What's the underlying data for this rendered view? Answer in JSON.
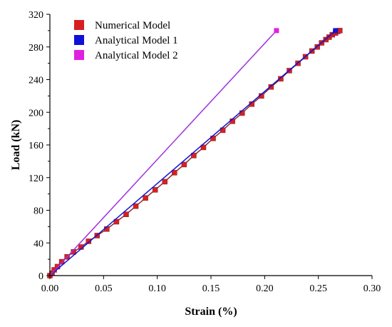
{
  "chart_data": {
    "type": "line",
    "xlabel": "Strain (%)",
    "ylabel": "Load (kN)",
    "xlim": [
      0,
      0.3
    ],
    "ylim": [
      0,
      320
    ],
    "xticks": [
      "0.00",
      "0.05",
      "0.10",
      "0.15",
      "0.20",
      "0.25",
      "0.30"
    ],
    "yticks": [
      "0",
      "40",
      "80",
      "120",
      "160",
      "200",
      "240",
      "280",
      "320"
    ],
    "grid": false,
    "legend_position": "top-left",
    "series": [
      {
        "name": "Numerical Model",
        "color": "#d62020",
        "line_color": "#8b2a2a",
        "marker": "square",
        "x": [
          0.0,
          0.002,
          0.004,
          0.007,
          0.011,
          0.016,
          0.022,
          0.029,
          0.036,
          0.044,
          0.053,
          0.062,
          0.071,
          0.08,
          0.089,
          0.098,
          0.107,
          0.116,
          0.125,
          0.134,
          0.143,
          0.152,
          0.161,
          0.17,
          0.179,
          0.188,
          0.197,
          0.206,
          0.215,
          0.223,
          0.231,
          0.238,
          0.244,
          0.249,
          0.253,
          0.257,
          0.26,
          0.263,
          0.266,
          0.268,
          0.27
        ],
        "y": [
          0,
          3,
          7,
          11,
          17,
          23,
          29,
          35,
          42,
          49,
          57,
          66,
          75,
          85,
          95,
          105,
          115,
          126,
          136,
          147,
          157,
          168,
          178,
          189,
          199,
          210,
          220,
          231,
          241,
          251,
          260,
          268,
          275,
          280,
          285,
          289,
          292,
          295,
          297,
          299,
          300
        ]
      },
      {
        "name": "Analytical Model 1",
        "color": "#1010d8",
        "line_color": "#1010d8",
        "marker": "square",
        "x": [
          0.0,
          0.266
        ],
        "y": [
          0,
          300
        ]
      },
      {
        "name": "Analytical Model 2",
        "color": "#e020e0",
        "line_color": "#a030e0",
        "marker": "square",
        "x": [
          0.0,
          0.211
        ],
        "y": [
          0,
          300
        ]
      }
    ]
  }
}
